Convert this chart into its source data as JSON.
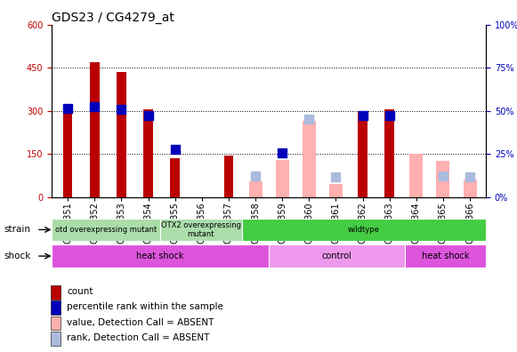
{
  "title": "GDS23 / CG4279_at",
  "samples": [
    "GSM1351",
    "GSM1352",
    "GSM1353",
    "GSM1354",
    "GSM1355",
    "GSM1356",
    "GSM1357",
    "GSM1358",
    "GSM1359",
    "GSM1360",
    "GSM1361",
    "GSM1362",
    "GSM1363",
    "GSM1364",
    "GSM1365",
    "GSM1366"
  ],
  "red_bars": [
    305,
    470,
    435,
    305,
    135,
    0,
    145,
    0,
    0,
    0,
    0,
    300,
    305,
    0,
    0,
    0
  ],
  "blue_sq_vals": [
    310,
    315,
    305,
    285,
    165,
    0,
    0,
    0,
    155,
    0,
    0,
    285,
    285,
    0,
    0,
    0
  ],
  "pink_bars": [
    0,
    0,
    0,
    0,
    0,
    0,
    0,
    55,
    130,
    265,
    45,
    0,
    0,
    150,
    125,
    60
  ],
  "lightblue_sq_vals": [
    0,
    0,
    0,
    0,
    0,
    0,
    0,
    75,
    0,
    270,
    70,
    0,
    0,
    0,
    75,
    70
  ],
  "ylim_left": [
    0,
    600
  ],
  "ylim_right": [
    0,
    100
  ],
  "yticks_left": [
    0,
    150,
    300,
    450,
    600
  ],
  "yticks_right": [
    0,
    25,
    50,
    75,
    100
  ],
  "red_color": "#BB0000",
  "blue_color": "#0000BB",
  "pink_color": "#FFB0B0",
  "lightblue_color": "#AABBDD",
  "strain_data": [
    {
      "start": 0,
      "end": 4,
      "label": "otd overexpressing mutant",
      "color": "#AADDAA"
    },
    {
      "start": 4,
      "end": 7,
      "label": "OTX2 overexpressing\nmutant",
      "color": "#AADDAA"
    },
    {
      "start": 7,
      "end": 16,
      "label": "wildtype",
      "color": "#44CC44"
    }
  ],
  "shock_data": [
    {
      "start": 0,
      "end": 8,
      "label": "heat shock",
      "color": "#DD55DD"
    },
    {
      "start": 8,
      "end": 13,
      "label": "control",
      "color": "#EE99EE"
    },
    {
      "start": 13,
      "end": 16,
      "label": "heat shock",
      "color": "#DD55DD"
    }
  ],
  "title_fontsize": 10,
  "tick_fontsize": 7,
  "bar_width": 0.35,
  "pink_bar_width": 0.5,
  "sq_size": 60,
  "bg_color": "#FFFFFF"
}
